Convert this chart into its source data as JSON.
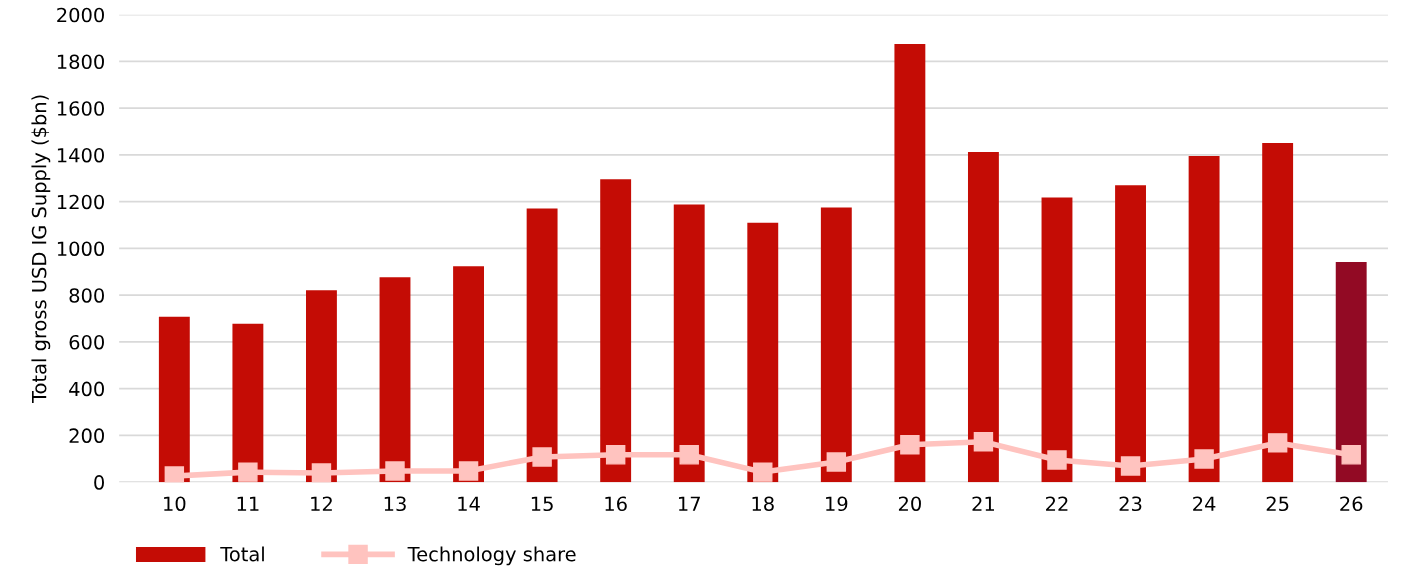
{
  "chart_data": {
    "type": "bar",
    "ylabel": "Total gross USD IG Supply ($bn)",
    "categories": [
      "10",
      "11",
      "12",
      "13",
      "14",
      "15",
      "16",
      "17",
      "18",
      "19",
      "20",
      "21",
      "22",
      "23",
      "24",
      "25",
      "26"
    ],
    "series": [
      {
        "name": "Total",
        "color": "#c40c05",
        "colors": [
          "#c40c05",
          "#c40c05",
          "#c40c05",
          "#c40c05",
          "#c40c05",
          "#c40c05",
          "#c40c05",
          "#c40c05",
          "#c40c05",
          "#c40c05",
          "#c40c05",
          "#c40c05",
          "#c40c05",
          "#c40c05",
          "#c40c05",
          "#c40c05",
          "#920a24"
        ],
        "values": [
          708,
          678,
          821,
          877,
          924,
          1171,
          1296,
          1188,
          1110,
          1175,
          1875,
          1413,
          1218,
          1270,
          1395,
          1451,
          942
        ]
      },
      {
        "name": "Technology share",
        "type": "line",
        "color": "#ffc3bf",
        "marker": "square",
        "values": [
          26,
          43,
          39,
          48,
          48,
          108,
          117,
          117,
          43,
          86,
          160,
          173,
          95,
          69,
          99,
          168,
          117
        ]
      }
    ],
    "ylim": [
      0,
      2000
    ],
    "yticks": [
      0,
      200,
      400,
      600,
      800,
      1000,
      1200,
      1400,
      1600,
      1800,
      2000
    ],
    "grid": "y",
    "legend": "bottom left"
  }
}
